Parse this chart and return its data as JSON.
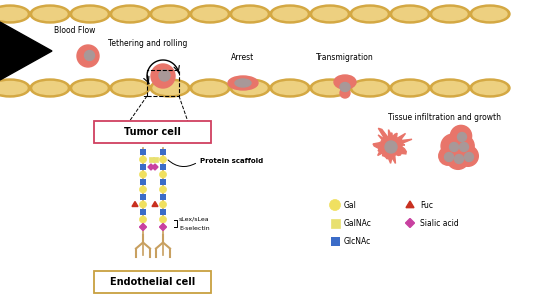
{
  "bg_color": "#ffffff",
  "endothelial_color": "#D4A843",
  "endothelial_inner": "#EDD080",
  "cell_body_color": "#E8756A",
  "cell_nucleus_color": "#A89898",
  "gal_color": "#F0E060",
  "galnac_color": "#E8E070",
  "glcnac_color": "#3B6CC8",
  "fuc_color": "#C83020",
  "sialic_color": "#C840A0",
  "labels": {
    "blood_flow": "Blood Flow",
    "tethering": "Tethering and rolling",
    "arrest": "Arrest",
    "transmigration": "Transmigration",
    "tissue": "Tissue infiltration and growth",
    "tumor_cell": "Tumor cell",
    "endothelial": "Endothelial cell",
    "protein_scaffold": "Protein scaffold",
    "slex": "sLex/sLea",
    "eselectin": "E-selectin"
  },
  "legend": {
    "gal": "Gal",
    "galnac": "GalNAc",
    "glcnac": "GlcNAc",
    "fuc": "Fuc",
    "sialic": "Sialic acid"
  }
}
